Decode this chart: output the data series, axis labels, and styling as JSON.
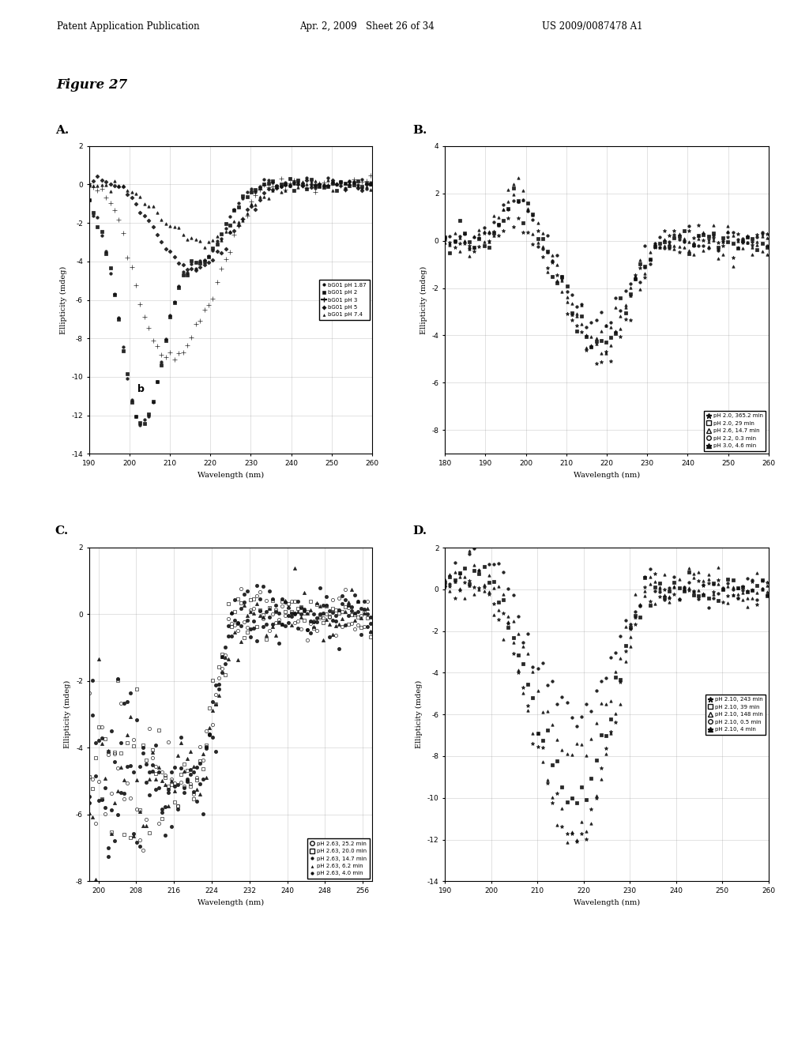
{
  "header_left": "Patent Application Publication",
  "header_mid": "Apr. 2, 2009   Sheet 26 of 34",
  "header_right": "US 2009/0087478 A1",
  "figure_label": "Figure 27",
  "plots": {
    "A": {
      "xlabel": "Wavelength (nm)",
      "ylabel": "Ellipticity (mdeg)",
      "xlim": [
        190,
        260
      ],
      "ylim": [
        -14,
        2
      ],
      "xticks": [
        190,
        200,
        210,
        220,
        230,
        240,
        250,
        260
      ],
      "yticks": [
        -14,
        -12,
        -10,
        -8,
        -6,
        -4,
        -2,
        0,
        2
      ],
      "legend_labels": [
        "bG01 pH 1.87",
        "bG01 pH 2",
        "bG01 pH 3",
        "bG01 pH 5",
        "bG01 pH 7.4"
      ],
      "legend_markers": [
        "o",
        "s",
        "+",
        "D",
        "^"
      ],
      "pHs": [
        1.87,
        2.0,
        3.0,
        5.0,
        7.4
      ],
      "annotation": "b"
    },
    "B": {
      "xlabel": "Wavelength (nm)",
      "ylabel": "Ellipticity (mdeg)",
      "xlim": [
        180,
        260
      ],
      "ylim": [
        -9,
        4
      ],
      "xticks": [
        180,
        190,
        200,
        210,
        220,
        230,
        240,
        250,
        260
      ],
      "yticks": [
        -8,
        -6,
        -4,
        -2,
        0,
        2,
        4
      ],
      "legend_labels": [
        "pH 2.0, 365.2 min",
        "pH 2.0, 29 min",
        "pH 2.6, 14.7 min",
        "pH 2.2, 0.3 min",
        "pH 3.0, 4.6 min"
      ],
      "legend_markers": [
        "*",
        "s",
        "^",
        "o",
        "^"
      ],
      "times": [
        365.2,
        29,
        14.7,
        0.3,
        4.6
      ],
      "pHs": [
        2.0,
        2.0,
        2.6,
        2.2,
        3.0
      ]
    },
    "C": {
      "xlabel": "Wavelength (nm)",
      "ylabel": "Ellipticity (mdeg)",
      "xlim": [
        198,
        258
      ],
      "ylim": [
        -8,
        2
      ],
      "xticks": [
        200,
        208,
        216,
        224,
        232,
        240,
        248,
        256
      ],
      "yticks": [
        -8,
        -6,
        -4,
        -2,
        0,
        2
      ],
      "legend_labels": [
        "pH 2.63, 25.2 min",
        "pH 2.63, 20.0 min",
        "pH 2.63, 14.7 min",
        "pH 2.63, 6.2 min",
        "pH 2.63, 4.0 min"
      ],
      "legend_markers": [
        "o",
        "s",
        "o",
        "^",
        "o"
      ],
      "times": [
        25.2,
        20.0,
        14.7,
        6.2,
        4.0
      ]
    },
    "D": {
      "xlabel": "Wavelength (nm)",
      "ylabel": "Ellipticity (mdeg)",
      "xlim": [
        190,
        260
      ],
      "ylim": [
        -14,
        2
      ],
      "xticks": [
        190,
        200,
        210,
        220,
        230,
        240,
        250,
        260
      ],
      "yticks": [
        -14,
        -12,
        -10,
        -8,
        -6,
        -4,
        -2,
        0,
        2
      ],
      "legend_labels": [
        "pH 2.10, 243 min",
        "pH 2.10, 39 min",
        "pH 2.10, 148 min",
        "pH 2.10, 0.5 min",
        "pH 2.10, 4 min"
      ],
      "legend_markers": [
        "*",
        "s",
        "^",
        "o",
        "^"
      ],
      "times": [
        243,
        39,
        148,
        0.5,
        4
      ]
    }
  }
}
